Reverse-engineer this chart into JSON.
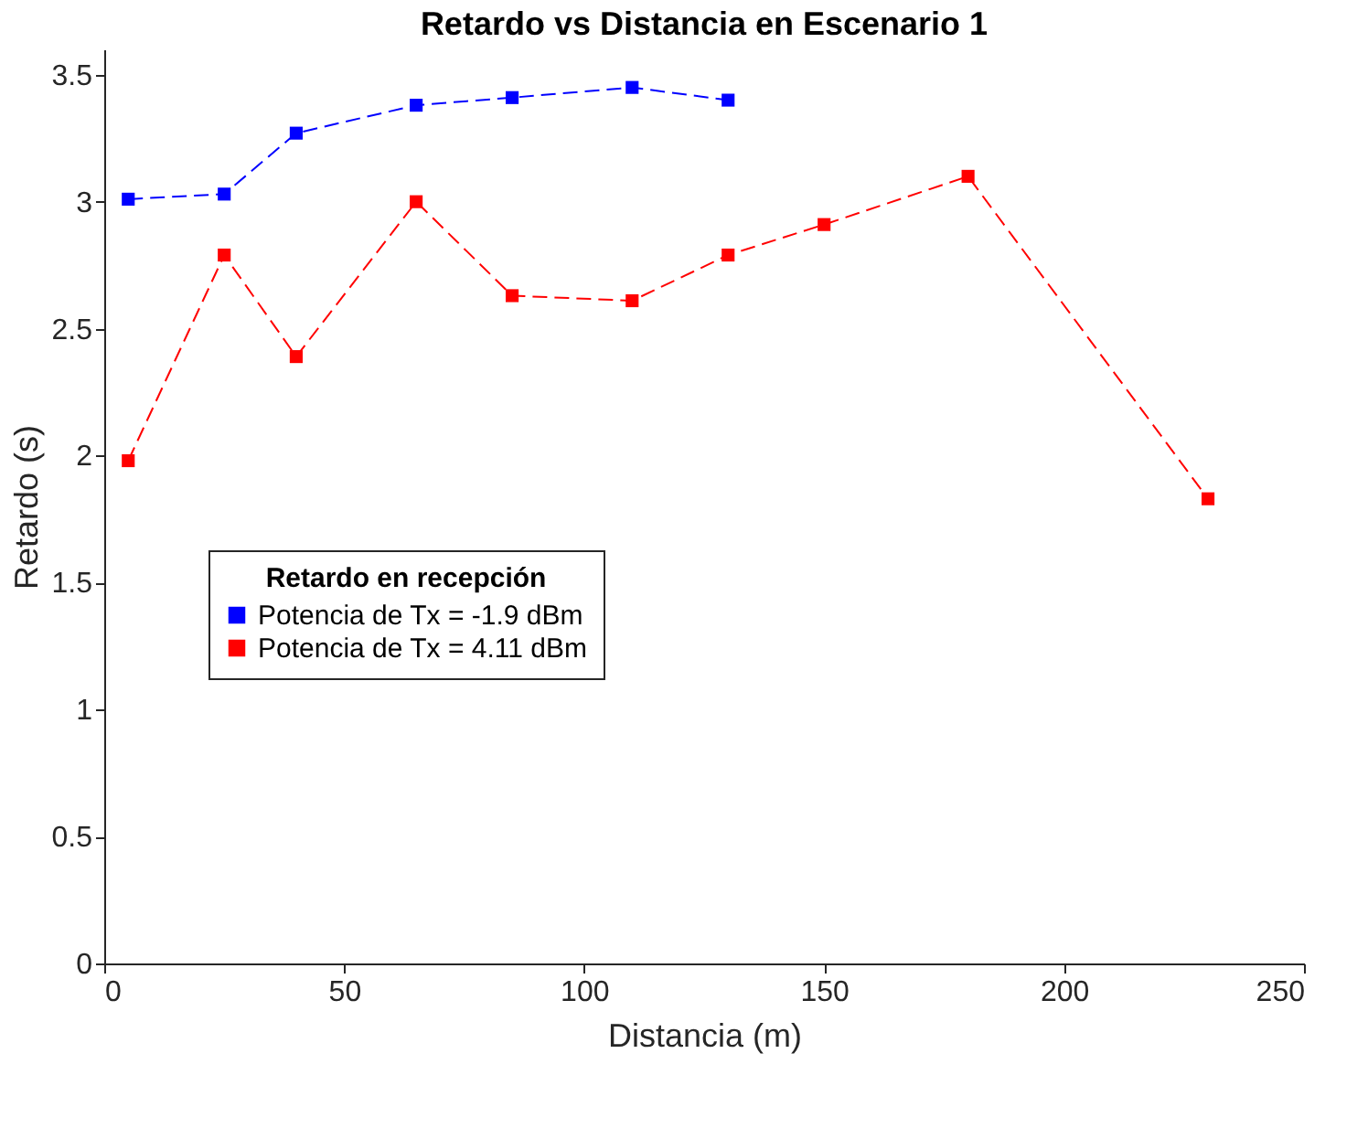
{
  "chart_data": {
    "type": "line",
    "title": "Retardo vs Distancia en Escenario 1",
    "xlabel": "Distancia (m)",
    "ylabel": "Retardo (s)",
    "legend_title": "Retardo en recepción",
    "legend": "left",
    "marker": "square",
    "line_style": "dashed",
    "grid": false,
    "xlim": [
      0,
      250
    ],
    "xticks": [
      0,
      50,
      100,
      150,
      200,
      250
    ],
    "ylim": [
      0,
      3.6
    ],
    "yticks": [
      0,
      0.5,
      1,
      1.5,
      2,
      2.5,
      3,
      3.5
    ],
    "series": [
      {
        "name": "Potencia de Tx = -1.9 dBm",
        "color": "#0000ff",
        "x": [
          5,
          25,
          40,
          65,
          85,
          110,
          130
        ],
        "values": [
          3.01,
          3.03,
          3.27,
          3.38,
          3.41,
          3.45,
          3.4
        ]
      },
      {
        "name": "Potencia de Tx = 4.11 dBm",
        "color": "#ff0000",
        "x": [
          5,
          25,
          40,
          65,
          85,
          110,
          130,
          150,
          180,
          230
        ],
        "values": [
          1.98,
          2.79,
          2.39,
          3.0,
          2.63,
          2.61,
          2.79,
          2.91,
          3.1,
          1.83
        ]
      }
    ]
  }
}
